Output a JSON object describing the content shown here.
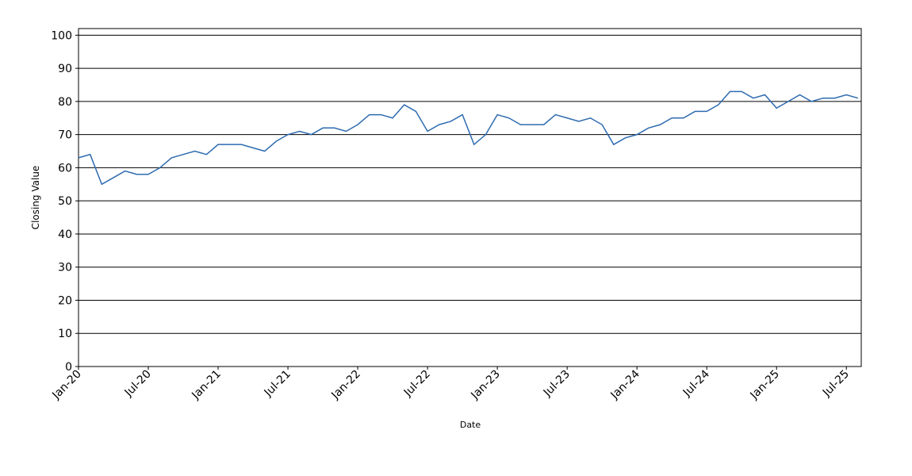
{
  "chart_data": {
    "type": "line",
    "x_label": "Date",
    "y_label": "Closing Value",
    "categories": [
      "Jan-20",
      null,
      null,
      null,
      null,
      null,
      "Jul-20",
      null,
      null,
      null,
      null,
      null,
      "Jan-21",
      null,
      null,
      null,
      null,
      null,
      "Jul-21",
      null,
      null,
      null,
      null,
      null,
      "Jan-22",
      null,
      null,
      null,
      null,
      null,
      "Jul-22",
      null,
      null,
      null,
      null,
      null,
      "Jan-23",
      null,
      null,
      null,
      null,
      null,
      "Jul-23",
      null,
      null,
      null,
      null,
      null,
      "Jan-24",
      null,
      null,
      null,
      null,
      null,
      "Jul-24",
      null,
      null,
      null,
      null,
      null,
      "Jan-25",
      null,
      null,
      null,
      null,
      null,
      "Jul-25",
      null
    ],
    "series": [
      {
        "color": "#2e6bb0",
        "values": [
          63,
          64,
          55,
          57,
          59,
          58,
          58,
          60,
          63,
          64,
          65,
          64,
          67,
          67,
          67,
          66,
          65,
          68,
          70,
          71,
          70,
          72,
          72,
          71,
          73,
          76,
          76,
          75,
          79,
          77,
          71,
          73,
          74,
          76,
          67,
          70,
          76,
          75,
          73,
          73,
          73,
          76,
          75,
          74,
          75,
          73,
          67,
          69,
          70,
          72,
          73,
          75,
          75,
          77,
          77,
          79,
          83,
          83,
          81,
          82,
          78,
          80,
          82,
          80,
          81,
          81,
          82,
          81
        ]
      }
    ],
    "ylim": [
      0,
      102
    ],
    "yticks": [
      0,
      10,
      20,
      30,
      40,
      50,
      60,
      70,
      80,
      90,
      100
    ],
    "grid": true
  }
}
